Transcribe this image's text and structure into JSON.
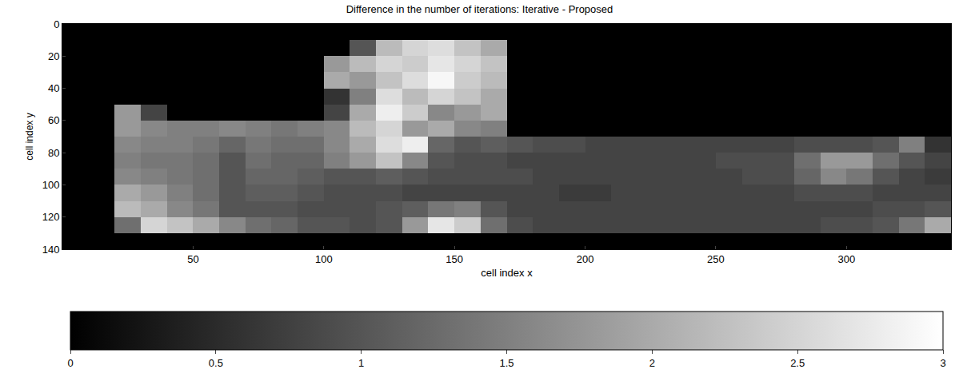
{
  "chart_data": {
    "type": "heatmap",
    "title": "Difference in the number of iterations: Iterative - Proposed",
    "x_label": "cell index x",
    "y_label": "cell index y",
    "color": "gray",
    "x": [
      5,
      15,
      25,
      35,
      45,
      55,
      65,
      75,
      85,
      95,
      105,
      115,
      125,
      135,
      145,
      155,
      165,
      175,
      185,
      195,
      205,
      215,
      225,
      235,
      245,
      255,
      265,
      275,
      285,
      295,
      305,
      315,
      325,
      335
    ],
    "y": [
      5,
      15,
      25,
      35,
      45,
      55,
      65,
      75,
      85,
      95,
      105,
      115,
      125,
      135
    ],
    "z": [
      [
        0,
        0,
        0,
        0,
        0,
        0,
        0,
        0,
        0,
        0,
        0,
        0,
        0,
        0,
        0,
        0,
        0,
        0,
        0,
        0,
        0,
        0,
        0,
        0,
        0,
        0,
        0,
        0,
        0,
        0,
        0,
        0,
        0,
        0
      ],
      [
        0,
        0,
        0,
        0,
        0,
        0,
        0,
        0,
        0,
        0,
        0,
        1.0,
        2.2,
        2.5,
        2.6,
        2.3,
        2.0,
        0,
        0,
        0,
        0,
        0,
        0,
        0,
        0,
        0,
        0,
        0,
        0,
        0,
        0,
        0,
        0,
        0
      ],
      [
        0,
        0,
        0,
        0,
        0,
        0,
        0,
        0,
        0,
        0,
        1.8,
        2.2,
        2.5,
        2.4,
        2.7,
        2.5,
        2.3,
        0,
        0,
        0,
        0,
        0,
        0,
        0,
        0,
        0,
        0,
        0,
        0,
        0,
        0,
        0,
        0,
        0
      ],
      [
        0,
        0,
        0,
        0,
        0,
        0,
        0,
        0,
        0,
        0,
        2.0,
        1.8,
        2.3,
        2.6,
        2.9,
        2.4,
        2.2,
        0,
        0,
        0,
        0,
        0,
        0,
        0,
        0,
        0,
        0,
        0,
        0,
        0,
        0,
        0,
        0,
        0
      ],
      [
        0,
        0,
        0,
        0,
        0,
        0,
        0,
        0,
        0,
        0,
        0.6,
        1.5,
        2.6,
        2.2,
        2.5,
        2.3,
        2.0,
        0,
        0,
        0,
        0,
        0,
        0,
        0,
        0,
        0,
        0,
        0,
        0,
        0,
        0,
        0,
        0,
        0
      ],
      [
        0,
        0,
        1.8,
        0.8,
        0,
        0,
        0,
        0,
        0,
        0,
        0.8,
        2.0,
        2.8,
        2.4,
        1.6,
        1.8,
        2.0,
        0,
        0,
        0,
        0,
        0,
        0,
        0,
        0,
        0,
        0,
        0,
        0,
        0,
        0,
        0,
        0,
        0
      ],
      [
        0,
        0,
        1.8,
        1.6,
        1.5,
        1.5,
        1.6,
        1.5,
        1.4,
        1.5,
        1.6,
        2.2,
        2.5,
        1.8,
        2.0,
        1.6,
        1.5,
        0,
        0,
        0,
        0,
        0,
        0,
        0,
        0,
        0,
        0,
        0,
        0,
        0,
        0,
        0,
        0,
        0
      ],
      [
        0,
        0,
        1.6,
        1.5,
        1.5,
        1.4,
        1.2,
        1.4,
        1.3,
        1.3,
        1.6,
        2.0,
        2.6,
        2.8,
        1.2,
        1.0,
        1.1,
        1.0,
        0.9,
        0.9,
        0.8,
        0.8,
        0.8,
        0.8,
        0.8,
        0.8,
        0.8,
        0.8,
        0.9,
        0.9,
        0.9,
        1.0,
        1.5,
        0.6
      ],
      [
        0,
        0,
        1.5,
        1.4,
        1.4,
        1.3,
        1.0,
        1.3,
        1.2,
        1.2,
        1.5,
        1.8,
        2.3,
        1.6,
        1.0,
        0.9,
        0.9,
        0.8,
        0.8,
        0.8,
        0.8,
        0.8,
        0.8,
        0.8,
        0.8,
        0.9,
        0.9,
        0.9,
        1.3,
        1.8,
        1.8,
        1.3,
        1.0,
        0.8
      ],
      [
        0,
        0,
        1.6,
        1.5,
        1.4,
        1.3,
        1.0,
        1.2,
        1.2,
        1.1,
        1.0,
        1.0,
        1.1,
        1.0,
        0.9,
        0.9,
        0.9,
        0.9,
        0.8,
        0.8,
        0.8,
        0.8,
        0.8,
        0.8,
        0.8,
        0.8,
        0.9,
        0.9,
        1.2,
        1.6,
        1.4,
        1.0,
        0.8,
        0.7
      ],
      [
        0,
        0,
        2.0,
        1.8,
        1.5,
        1.3,
        1.0,
        1.1,
        1.1,
        1.0,
        0.9,
        0.9,
        0.9,
        0.8,
        0.8,
        0.8,
        0.8,
        0.8,
        0.8,
        0.7,
        0.7,
        0.8,
        0.8,
        0.8,
        0.8,
        0.8,
        0.8,
        0.8,
        0.9,
        0.9,
        0.9,
        0.8,
        0.8,
        0.8
      ],
      [
        0,
        0,
        2.2,
        2.0,
        1.6,
        1.4,
        1.0,
        1.0,
        1.0,
        0.9,
        0.9,
        0.9,
        1.0,
        1.1,
        1.4,
        1.5,
        1.0,
        0.8,
        0.8,
        0.8,
        0.8,
        0.8,
        0.8,
        0.8,
        0.8,
        0.8,
        0.8,
        0.8,
        0.8,
        0.8,
        0.8,
        0.9,
        0.9,
        1.0
      ],
      [
        0,
        0,
        1.3,
        2.5,
        2.3,
        2.0,
        1.6,
        1.3,
        1.2,
        1.0,
        1.0,
        0.9,
        1.0,
        1.8,
        2.7,
        2.4,
        1.3,
        0.9,
        0.8,
        0.8,
        0.8,
        0.8,
        0.8,
        0.8,
        0.8,
        0.8,
        0.8,
        0.8,
        0.8,
        0.9,
        0.9,
        1.0,
        1.4,
        2.0
      ],
      [
        0,
        0,
        0,
        0,
        0,
        0,
        0,
        0,
        0,
        0,
        0,
        0,
        0,
        0,
        0,
        0,
        0,
        0,
        0,
        0,
        0,
        0,
        0,
        0,
        0,
        0,
        0,
        0,
        0,
        0,
        0,
        0,
        0,
        0
      ]
    ],
    "xlim": [
      0,
      340
    ],
    "xticks": [
      50,
      100,
      150,
      200,
      250,
      300
    ],
    "ylim": [
      140,
      0
    ],
    "yticks": [
      0,
      20,
      40,
      60,
      80,
      100,
      120,
      140
    ],
    "colorbar": {
      "range": [
        0,
        3
      ],
      "ticks": [
        0,
        0.5,
        1,
        1.5,
        2,
        2.5,
        3
      ]
    }
  }
}
